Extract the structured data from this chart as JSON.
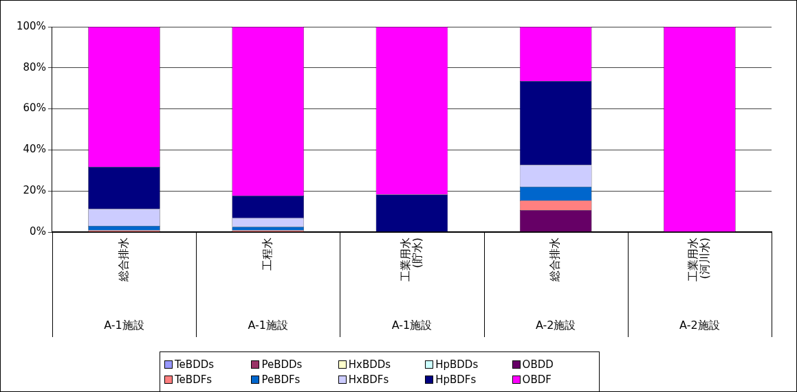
{
  "chart_data": {
    "type": "bar",
    "stacked": true,
    "categories": [
      "A-1施設\n総合排水",
      "A-1施設\n工程水",
      "A-1施設\n工業用水\n(貯水)",
      "A-2施設\n総合排水",
      "A-2施設\n工業用水\n(河川水)"
    ],
    "ylim": [
      0,
      100
    ],
    "yticks": [
      {
        "value": 0,
        "label": "0%"
      },
      {
        "value": 20,
        "label": "20%"
      },
      {
        "value": 40,
        "label": "40%"
      },
      {
        "value": 60,
        "label": "60%"
      },
      {
        "value": 80,
        "label": "80%"
      },
      {
        "value": 100,
        "label": "100%"
      }
    ],
    "grid": "y",
    "legend": "bottom",
    "series": [
      {
        "name": "TeBDDs",
        "color": "#9999ff",
        "values": [
          0,
          0,
          0,
          0,
          0
        ]
      },
      {
        "name": "PeBDDs",
        "color": "#993366",
        "values": [
          0,
          0,
          0,
          0,
          0
        ]
      },
      {
        "name": "HxBDDs",
        "color": "#ffffcc",
        "values": [
          0,
          0,
          0,
          0,
          0
        ]
      },
      {
        "name": "HpBDDs",
        "color": "#ccffff",
        "values": [
          0,
          0,
          0,
          0,
          0
        ]
      },
      {
        "name": "OBDD",
        "color": "#660066",
        "values": [
          0,
          0,
          0,
          10.7,
          0
        ]
      },
      {
        "name": "TeBDFs",
        "color": "#ff8080",
        "values": [
          0.8,
          0.8,
          0,
          4.7,
          0
        ]
      },
      {
        "name": "PeBDFs",
        "color": "#0066cc",
        "values": [
          2.2,
          1.8,
          0,
          6.7,
          0
        ]
      },
      {
        "name": "HxBDFs",
        "color": "#ccccff",
        "values": [
          8.2,
          4.2,
          0,
          10.6,
          0
        ]
      },
      {
        "name": "HpBDFs",
        "color": "#000080",
        "values": [
          20.6,
          10.9,
          18.3,
          40.9,
          0
        ]
      },
      {
        "name": "OBDF",
        "color": "#ff00ff",
        "values": [
          68.2,
          82.3,
          81.7,
          26.4,
          100
        ]
      }
    ]
  }
}
